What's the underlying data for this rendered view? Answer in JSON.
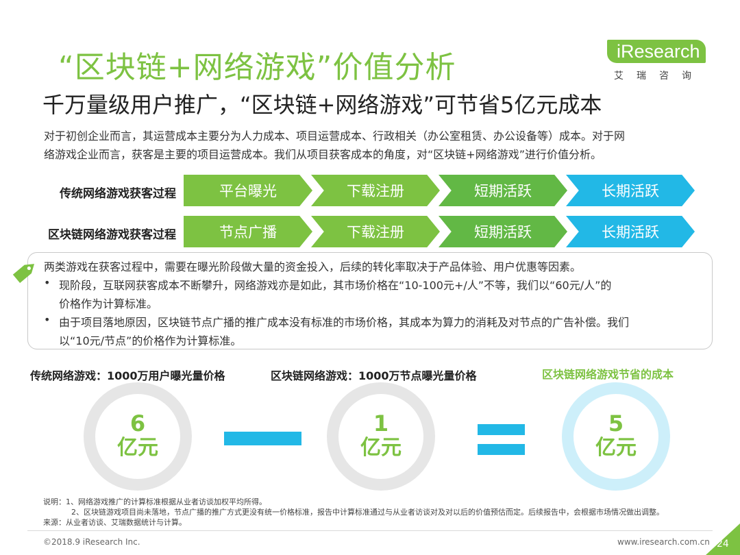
{
  "header": {
    "title": "“区块链+网络游戏”价值分析",
    "subtitle": "千万量级用户推广，“区块链+网络游戏”可节省5亿元成本",
    "intro_1": "对于初创企业而言，其运营成本主要分为人力成本、项目运营成本、行政相关（办公室租赁、办公设备等）成本。对于网",
    "intro_2": "络游戏企业而言，获客是主要的项目运营成本。我们从项目获客成本的角度，对“区块链+网络游戏”进行价值分析。"
  },
  "logo": {
    "word": "iResearch",
    "cn": "艾瑞咨询"
  },
  "process": {
    "rows": [
      {
        "label": "传统网络游戏获客过程",
        "steps": [
          "平台曝光",
          "下载注册",
          "短期活跃",
          "长期活跃"
        ]
      },
      {
        "label": "区块链网络游戏获客过程",
        "steps": [
          "节点广播",
          "下载注册",
          "短期活跃",
          "长期活跃"
        ]
      }
    ],
    "colors": [
      "#7dc242",
      "#7dc242",
      "#62b845",
      "#22b8e6"
    ]
  },
  "note": {
    "line_1": "两类游戏在获客过程中，需要在曝光阶段做大量的资金投入，后续的转化率取决于产品体验、用户优惠等因素。",
    "bullet_1a": "现阶段，互联网获客成本不断攀升，网络游戏亦是如此，其市场价格在“10-100元+/人”不等，我们以“60元/人”的",
    "bullet_1b": "价格作为计算标准。",
    "bullet_2a": "由于项目落地原因，区块链节点广播的推广成本没有标准的市场价格，其成本为算力的消耗及对节点的广告补偿。我们",
    "bullet_2b": "以“10元/节点”的价格作为计算标准。",
    "bullet_mark": "•"
  },
  "equation": {
    "cap_left": "传统网络游戏：1000万用户曝光量价格",
    "cap_mid": "区块链网络游戏：1000万节点曝光量价格",
    "cap_right": "区块链网络游戏节省的成本",
    "left": {
      "num": "6",
      "unit": "亿元"
    },
    "mid": {
      "num": "1",
      "unit": "亿元"
    },
    "right": {
      "num": "5",
      "unit": "亿元"
    }
  },
  "footnotes": {
    "note_1": "说明：1、网络游戏推广的计算标准根据从业者访谈加权平均所得。",
    "note_2": "2、区块链游戏项目尚未落地，节点广播的推广方式更没有统一价格标准，报告中计算标准通过与从业者访谈对及对以后的价值预估而定。后续报告中，会根据市场情况做出调整。",
    "source": "来源：从业者访谈、艾瑞数据统计与计算。"
  },
  "footer": {
    "copyright": "©2018.9 iResearch Inc.",
    "url": "www.iresearch.com.cn",
    "page": "24"
  },
  "accent": "#7dc242",
  "accent_blue": "#22b8e6"
}
